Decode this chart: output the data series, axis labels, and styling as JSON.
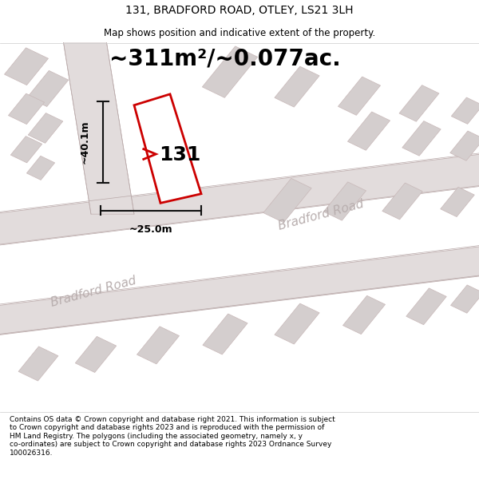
{
  "title": "131, BRADFORD ROAD, OTLEY, LS21 3LH",
  "subtitle": "Map shows position and indicative extent of the property.",
  "area_text": "~311m²/~0.077ac.",
  "label_131": "131",
  "dim_horizontal": "~25.0m",
  "dim_vertical": "~40.1m",
  "road_label_1": "Bradford Road",
  "road_label_2": "Bradford Road",
  "footer": "Contains OS data © Crown copyright and database right 2021. This information is subject to Crown copyright and database rights 2023 and is reproduced with the permission of HM Land Registry. The polygons (including the associated geometry, namely x, y co-ordinates) are subject to Crown copyright and database rights 2023 Ordnance Survey 100026316.",
  "map_bg": "#f2efef",
  "road_fill": "#e2dcdc",
  "building_fill": "#d4cece",
  "building_edge": "#c8b8b8",
  "plot_outline_color": "#cc0000",
  "plot_fill": "#ffffff",
  "road_edge_color": "#c0b0b0",
  "dim_line_color": "#111111",
  "road_text_color": "#b8aeae",
  "title_fontsize": 10,
  "subtitle_fontsize": 8.5,
  "area_fontsize": 20,
  "label_fontsize": 18,
  "dim_fontsize": 9,
  "road_fontsize": 11,
  "footer_fontsize": 6.5
}
